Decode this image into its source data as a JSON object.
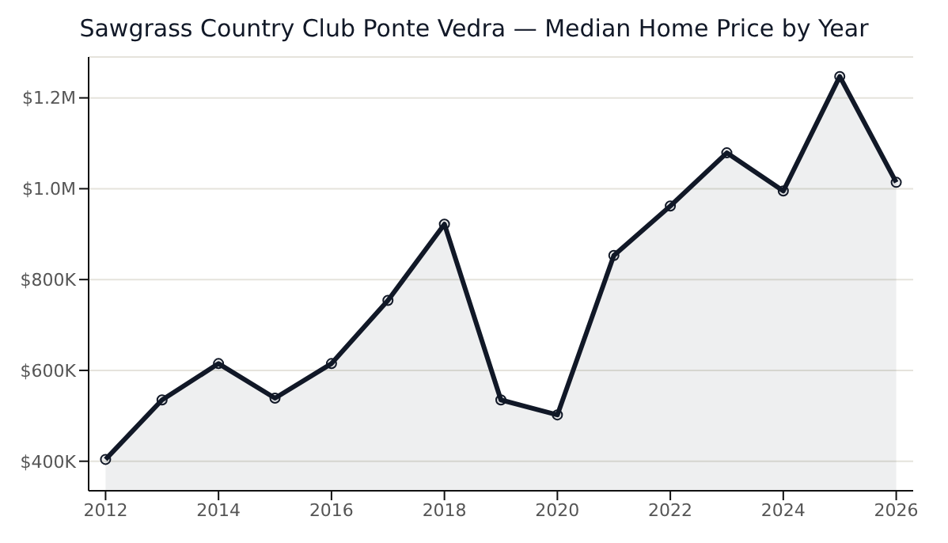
{
  "chart_data": {
    "type": "area",
    "title": "Sawgrass Country Club Ponte Vedra — Median Home Price by Year",
    "x": [
      2012,
      2013,
      2014,
      2015,
      2016,
      2017,
      2018,
      2019,
      2020,
      2021,
      2022,
      2023,
      2024,
      2025,
      2026
    ],
    "series": [
      {
        "color": "#111827",
        "values": [
          404000,
          535000,
          615000,
          539000,
          615000,
          754000,
          922000,
          535000,
          502000,
          853000,
          962000,
          1079000,
          995000,
          1247000,
          1014000
        ]
      }
    ],
    "xlim": [
      2011.7,
      2026.3
    ],
    "xticks": [
      2012,
      2014,
      2016,
      2018,
      2020,
      2022,
      2024,
      2026
    ],
    "ylim": [
      335000,
      1290000
    ],
    "yticks": [
      {
        "value": 400000,
        "label": "$400K"
      },
      {
        "value": 600000,
        "label": "$600K"
      },
      {
        "value": 800000,
        "label": "$800K"
      },
      {
        "value": 1000000,
        "label": "$1.0M"
      },
      {
        "value": 1200000,
        "label": "$1.2M"
      }
    ],
    "grid": "y",
    "marker": "circle",
    "line_style": "solid"
  }
}
